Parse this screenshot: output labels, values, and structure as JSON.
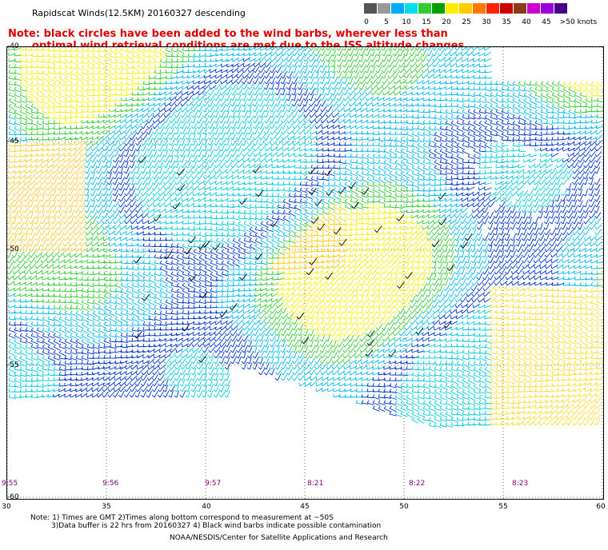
{
  "title": "Rapidscat Winds(12.5KM) 20160327 descending",
  "note_line1": "Note: black circles have been added to the wind barbs, wherever less than",
  "note_line2": "optimal wind retrieval conditions are met due to the ISS altitude changes.",
  "color_scale": {
    "colors": [
      "#555555",
      "#999999",
      "#00aaff",
      "#00ddee",
      "#33cc33",
      "#00a000",
      "#ffee00",
      "#ffcc00",
      "#ff7700",
      "#ff2200",
      "#cc0000",
      "#8b3a1a",
      "#cc00cc",
      "#9900dd",
      "#440088"
    ],
    "labels": [
      "0",
      "5",
      "10",
      "15",
      "20",
      "25",
      "30",
      "35",
      "40",
      "45",
      ">50 knots"
    ]
  },
  "lat_labels": [
    "-40",
    "-45",
    "-50",
    "-55",
    "-60"
  ],
  "lon_labels": [
    "30",
    "35",
    "40",
    "45",
    "50",
    "55",
    "60"
  ],
  "time_labels": [
    "9:55",
    "9:56",
    "9:57",
    "8:21",
    "8:22",
    "8:23"
  ],
  "footer_line1": "Note: 1) Times are GMT 2)Times along bottom correspond to measurement at ~50S",
  "footer_line2": "3)Data buffer is 22 hrs from 20160327 4) Black wind barbs indicate possible contamination",
  "footer_line3": "NOAA/NESDIS/Center for Satellite Applications and Research"
}
